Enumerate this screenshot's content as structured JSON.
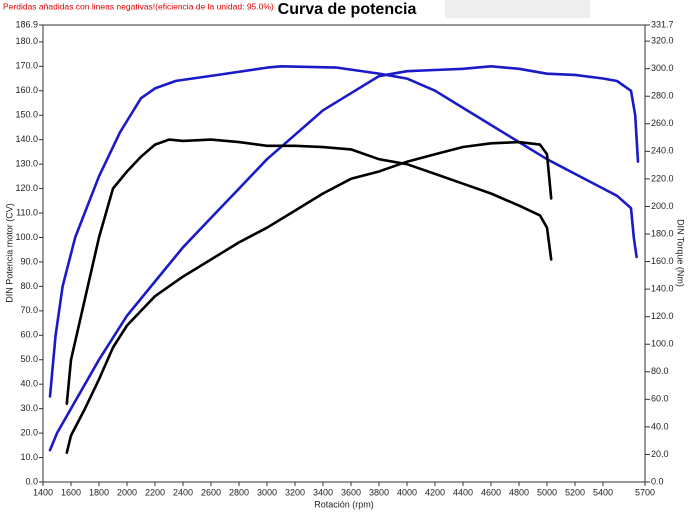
{
  "chart_data": {
    "type": "line",
    "title": "Curva de potencia",
    "subtitle": "Perdidas añadidas con lineas negativas!(eficiencia de la unidad: 95.0%)",
    "x_label": "Rotación (rpm)",
    "y_label": "DIN Potencia motor (CV)",
    "y2_label": "DIN Torque (Nm)",
    "xlim": [
      1400,
      5700
    ],
    "xticks": [
      1400,
      1600,
      1800,
      2000,
      2200,
      2400,
      2600,
      2800,
      3000,
      3200,
      3400,
      3600,
      3800,
      4000,
      4200,
      4400,
      4600,
      4800,
      5000,
      5200,
      5400,
      5700
    ],
    "ylim": [
      0,
      186.9
    ],
    "yticks": [
      {
        "value": 0,
        "label": "0.0"
      },
      {
        "value": 10,
        "label": "10.0"
      },
      {
        "value": 20,
        "label": "20.0"
      },
      {
        "value": 30,
        "label": "30.0"
      },
      {
        "value": 40,
        "label": "40.0"
      },
      {
        "value": 50,
        "label": "50.0"
      },
      {
        "value": 60,
        "label": "60.0"
      },
      {
        "value": 70,
        "label": "70.0"
      },
      {
        "value": 80,
        "label": "80.0"
      },
      {
        "value": 90,
        "label": "90.0"
      },
      {
        "value": 100,
        "label": "100.0"
      },
      {
        "value": 110,
        "label": "110.0"
      },
      {
        "value": 120,
        "label": "120.0"
      },
      {
        "value": 130,
        "label": "130.0"
      },
      {
        "value": 140,
        "label": "140.0"
      },
      {
        "value": 150,
        "label": "150.0"
      },
      {
        "value": 160,
        "label": "160.0"
      },
      {
        "value": 170,
        "label": "170.0"
      },
      {
        "value": 180,
        "label": "180.0"
      },
      186.9
    ],
    "y2lim": [
      0,
      331.7
    ],
    "y2ticks": [
      {
        "value": 0,
        "label": "0.0"
      },
      {
        "value": 20,
        "label": "20.0"
      },
      {
        "value": 40,
        "label": "40.0"
      },
      {
        "value": 60,
        "label": "60.0"
      },
      {
        "value": 80,
        "label": "80.0"
      },
      {
        "value": 100,
        "label": "100.0"
      },
      {
        "value": 120,
        "label": "120.0"
      },
      {
        "value": 140,
        "label": "140.0"
      },
      {
        "value": 160,
        "label": "160.0"
      },
      {
        "value": 180,
        "label": "180.0"
      },
      {
        "value": 200,
        "label": "200.0"
      },
      {
        "value": 220,
        "label": "220.0"
      },
      {
        "value": 240,
        "label": "240.0"
      },
      {
        "value": 260,
        "label": "260.0"
      },
      {
        "value": 280,
        "label": "280.0"
      },
      {
        "value": 300,
        "label": "300.0"
      },
      {
        "value": 320,
        "label": "320.0"
      },
      331.7
    ],
    "series": [
      {
        "color": "#1a1ac8",
        "axis": "y2",
        "x": [
          1450,
          1490,
          1540,
          1630,
          1800,
          1950,
          2100,
          2200,
          2350,
          2650,
          3000,
          3100,
          3500,
          3800,
          4000,
          4200,
          4400,
          4600,
          4800,
          5000,
          5200,
          5400,
          5500,
          5600,
          5620,
          5640
        ],
        "values": [
          62.1,
          106.5,
          142.0,
          177.5,
          221.9,
          253.8,
          278.6,
          285.7,
          291.1,
          295.5,
          300.8,
          301.7,
          300.8,
          296.4,
          292.8,
          284.0,
          271.5,
          259.1,
          246.7,
          234.3,
          223.6,
          213.0,
          207.7,
          198.8,
          177.5,
          163.3
        ]
      },
      {
        "color": "#1a1ac8",
        "axis": "y",
        "x": [
          1450,
          1500,
          1600,
          1800,
          2000,
          2200,
          2400,
          2600,
          2800,
          3000,
          3200,
          3400,
          3600,
          3800,
          4000,
          4200,
          4400,
          4600,
          4800,
          5000,
          5200,
          5400,
          5500,
          5600,
          5630,
          5650
        ],
        "values": [
          13,
          20,
          30,
          50,
          68,
          82,
          96,
          108,
          120,
          132,
          142,
          152,
          159,
          166,
          168,
          168.5,
          169,
          170,
          169,
          167,
          166.5,
          165,
          164,
          160,
          150,
          131
        ]
      },
      {
        "color": "#000000",
        "axis": "y2",
        "x": [
          1570,
          1600,
          1700,
          1800,
          1900,
          2000,
          2100,
          2200,
          2300,
          2400,
          2600,
          2800,
          3000,
          3200,
          3400,
          3600,
          3800,
          4000,
          4200,
          4400,
          4600,
          4800,
          4950,
          5000,
          5030
        ],
        "values": [
          56.8,
          88.7,
          133.1,
          177.5,
          213.0,
          225.4,
          236.1,
          244.9,
          248.5,
          247.6,
          248.5,
          246.7,
          244.0,
          244.0,
          243.1,
          241.4,
          234.3,
          230.7,
          223.6,
          216.5,
          209.4,
          200.6,
          193.5,
          184.6,
          161.5
        ]
      },
      {
        "color": "#000000",
        "axis": "y",
        "x": [
          1570,
          1600,
          1700,
          1800,
          1900,
          2000,
          2200,
          2400,
          2600,
          2800,
          3000,
          3200,
          3400,
          3600,
          3800,
          4000,
          4200,
          4400,
          4600,
          4800,
          4950,
          5000,
          5030
        ],
        "values": [
          12,
          19,
          30,
          42,
          55,
          64,
          76,
          84,
          91,
          98,
          104,
          111,
          118,
          124,
          127,
          131,
          134,
          137,
          138.5,
          139,
          138,
          134,
          116
        ]
      }
    ]
  }
}
